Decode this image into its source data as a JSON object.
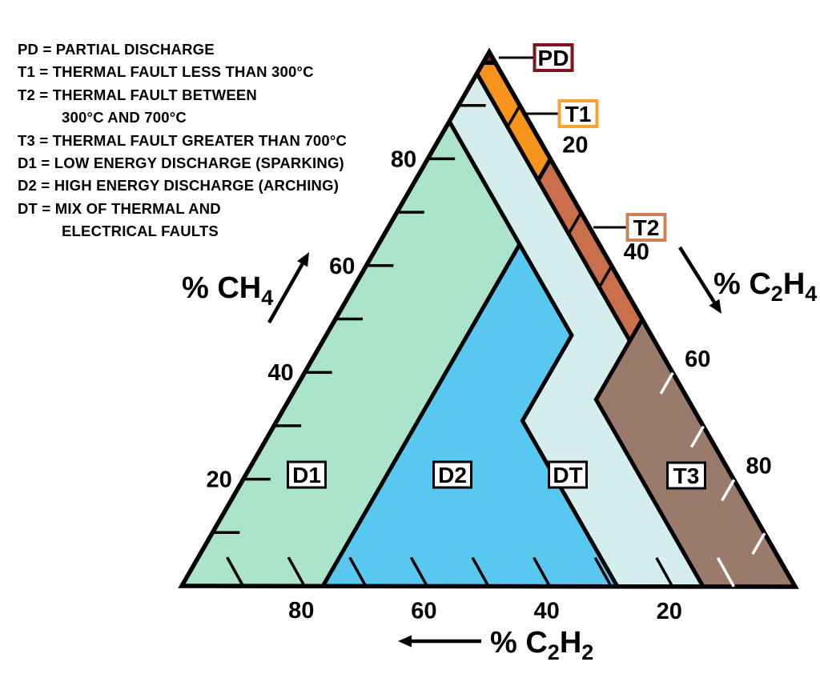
{
  "legend": {
    "lines": [
      {
        "text": "PD = PARTIAL DISCHARGE",
        "indent": false
      },
      {
        "text": "T1 = THERMAL FAULT LESS THAN 300°C",
        "indent": false
      },
      {
        "text": "T2 = THERMAL FAULT BETWEEN",
        "indent": false
      },
      {
        "text": "300°C AND 700°C",
        "indent": true
      },
      {
        "text": "T3 = THERMAL FAULT GREATER THAN 700°C",
        "indent": false
      },
      {
        "text": "D1 = LOW ENERGY DISCHARGE (SPARKING)",
        "indent": false
      },
      {
        "text": "D2 = HIGH ENERGY DISCHARGE (ARCHING)",
        "indent": false
      },
      {
        "text": "DT = MIX OF THERMAL AND",
        "indent": false
      },
      {
        "text": "ELECTRICAL FAULTS",
        "indent": true
      }
    ]
  },
  "chart_data": {
    "type": "ternary_zone_diagram",
    "coordinate_order": [
      "CH4",
      "C2H4",
      "C2H2"
    ],
    "axes": {
      "left": {
        "label": "% CH4",
        "parts": [
          {
            "t": "% CH"
          },
          {
            "t": "4",
            "sub": true
          }
        ],
        "tick_labels": [
          20,
          40,
          60,
          80
        ],
        "tick_step": 10,
        "range": [
          0,
          100
        ],
        "arrow": "up-right"
      },
      "right": {
        "label": "% C2H4",
        "parts": [
          {
            "t": "% C"
          },
          {
            "t": "2",
            "sub": true
          },
          {
            "t": "H"
          },
          {
            "t": "4",
            "sub": true
          }
        ],
        "tick_labels": [
          20,
          40,
          60,
          80
        ],
        "tick_step": 10,
        "range": [
          0,
          100
        ],
        "arrow": "down-right"
      },
      "bottom": {
        "label": "% C2H2",
        "parts": [
          {
            "t": "% C"
          },
          {
            "t": "2",
            "sub": true
          },
          {
            "t": "H"
          },
          {
            "t": "2",
            "sub": true
          }
        ],
        "tick_labels": [
          80,
          60,
          40,
          20
        ],
        "tick_step": 10,
        "range": [
          0,
          100
        ],
        "arrow": "left"
      }
    },
    "zones": [
      {
        "id": "PD",
        "fill": "#7E1B1F",
        "label_border": "#7E161B",
        "callout": true,
        "polygon": [
          [
            100,
            0,
            0
          ],
          [
            98,
            2,
            0
          ],
          [
            98,
            0,
            2
          ]
        ]
      },
      {
        "id": "T1",
        "fill": "#F7941E",
        "label_border": "#F8A331",
        "callout": true,
        "polygon": [
          [
            98,
            2,
            0
          ],
          [
            98,
            0,
            2
          ],
          [
            96,
            0,
            4
          ],
          [
            76,
            20,
            4
          ],
          [
            80,
            20,
            0
          ]
        ]
      },
      {
        "id": "T2",
        "fill": "#C96F4B",
        "label_border": "#CE8156",
        "callout": true,
        "polygon": [
          [
            80,
            20,
            0
          ],
          [
            76,
            20,
            4
          ],
          [
            46,
            50,
            4
          ],
          [
            50,
            50,
            0
          ]
        ]
      },
      {
        "id": "T3",
        "fill": "#997A6B",
        "label_border": "#000000",
        "callout": false,
        "polygon": [
          [
            50,
            50,
            0
          ],
          [
            46,
            50,
            4
          ],
          [
            35,
            50,
            15
          ],
          [
            0,
            85,
            15
          ],
          [
            0,
            100,
            0
          ]
        ]
      },
      {
        "id": "D1",
        "fill": "#ACE4CB",
        "label_border": "#000000",
        "callout": false,
        "polygon": [
          [
            87,
            0,
            13
          ],
          [
            64,
            23,
            13
          ],
          [
            0,
            23,
            77
          ],
          [
            0,
            0,
            100
          ]
        ]
      },
      {
        "id": "D2",
        "fill": "#58C8F0",
        "label_border": "#000000",
        "callout": false,
        "polygon": [
          [
            64,
            23,
            13
          ],
          [
            47,
            40,
            13
          ],
          [
            31,
            40,
            29
          ],
          [
            0,
            71,
            29
          ],
          [
            0,
            23,
            77
          ]
        ]
      },
      {
        "id": "DT",
        "fill": "#D5EDEC",
        "label_border": "#000000",
        "callout": false,
        "polygon": [
          [
            96,
            0,
            4
          ],
          [
            87,
            0,
            13
          ],
          [
            64,
            23,
            13
          ],
          [
            47,
            40,
            13
          ],
          [
            31,
            40,
            29
          ],
          [
            0,
            71,
            29
          ],
          [
            0,
            85,
            15
          ],
          [
            35,
            50,
            15
          ],
          [
            46,
            50,
            4
          ]
        ]
      }
    ]
  }
}
